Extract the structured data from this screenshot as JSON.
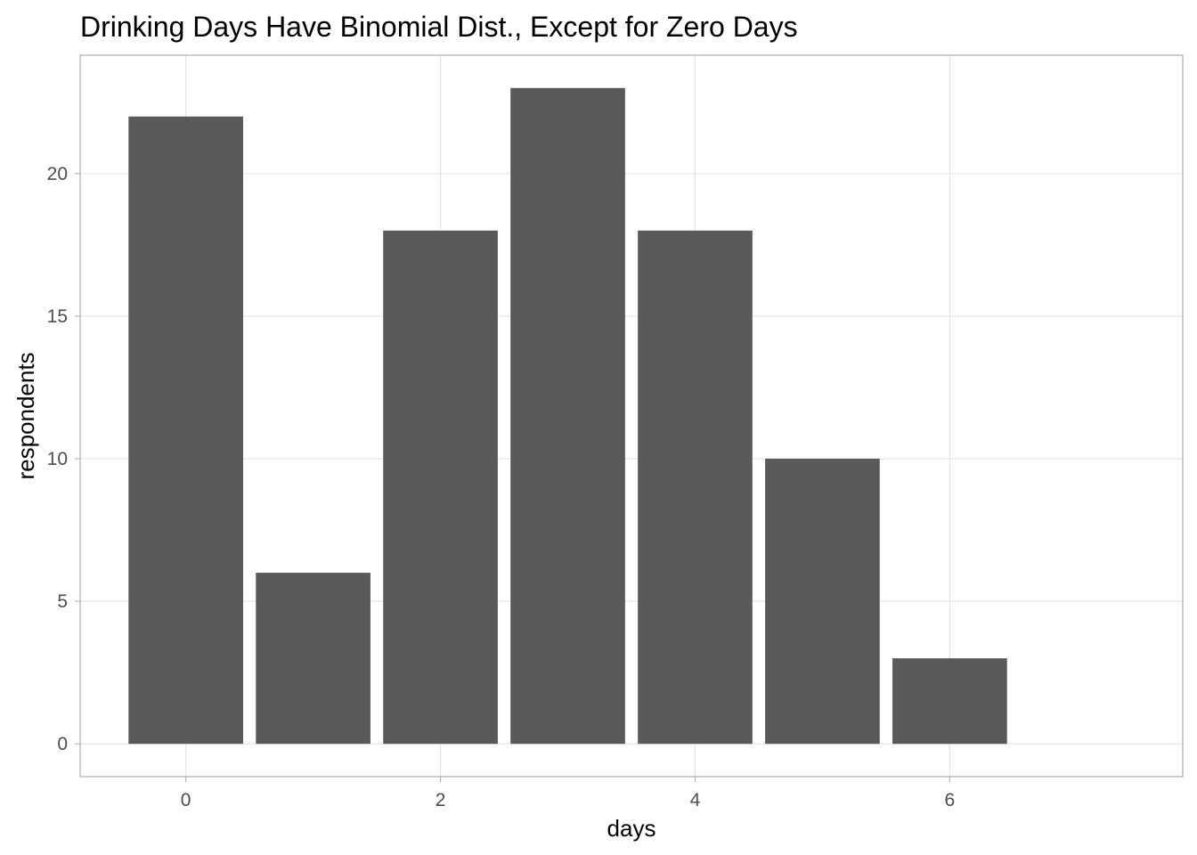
{
  "chart_data": {
    "type": "bar",
    "title": "Drinking Days Have Binomial Dist., Except for Zero Days",
    "xlabel": "days",
    "ylabel": "respondents",
    "categories": [
      0,
      1,
      2,
      3,
      4,
      5,
      6
    ],
    "values": [
      22,
      6,
      18,
      23,
      18,
      10,
      3
    ],
    "xlim": [
      -0.83,
      7.83
    ],
    "ylim": [
      -1.15,
      24.15
    ],
    "x_ticks": [
      0,
      2,
      4,
      6
    ],
    "y_ticks": [
      0,
      5,
      10,
      15,
      20
    ],
    "bar_color": "#595959",
    "grid": true,
    "legend": "none"
  }
}
